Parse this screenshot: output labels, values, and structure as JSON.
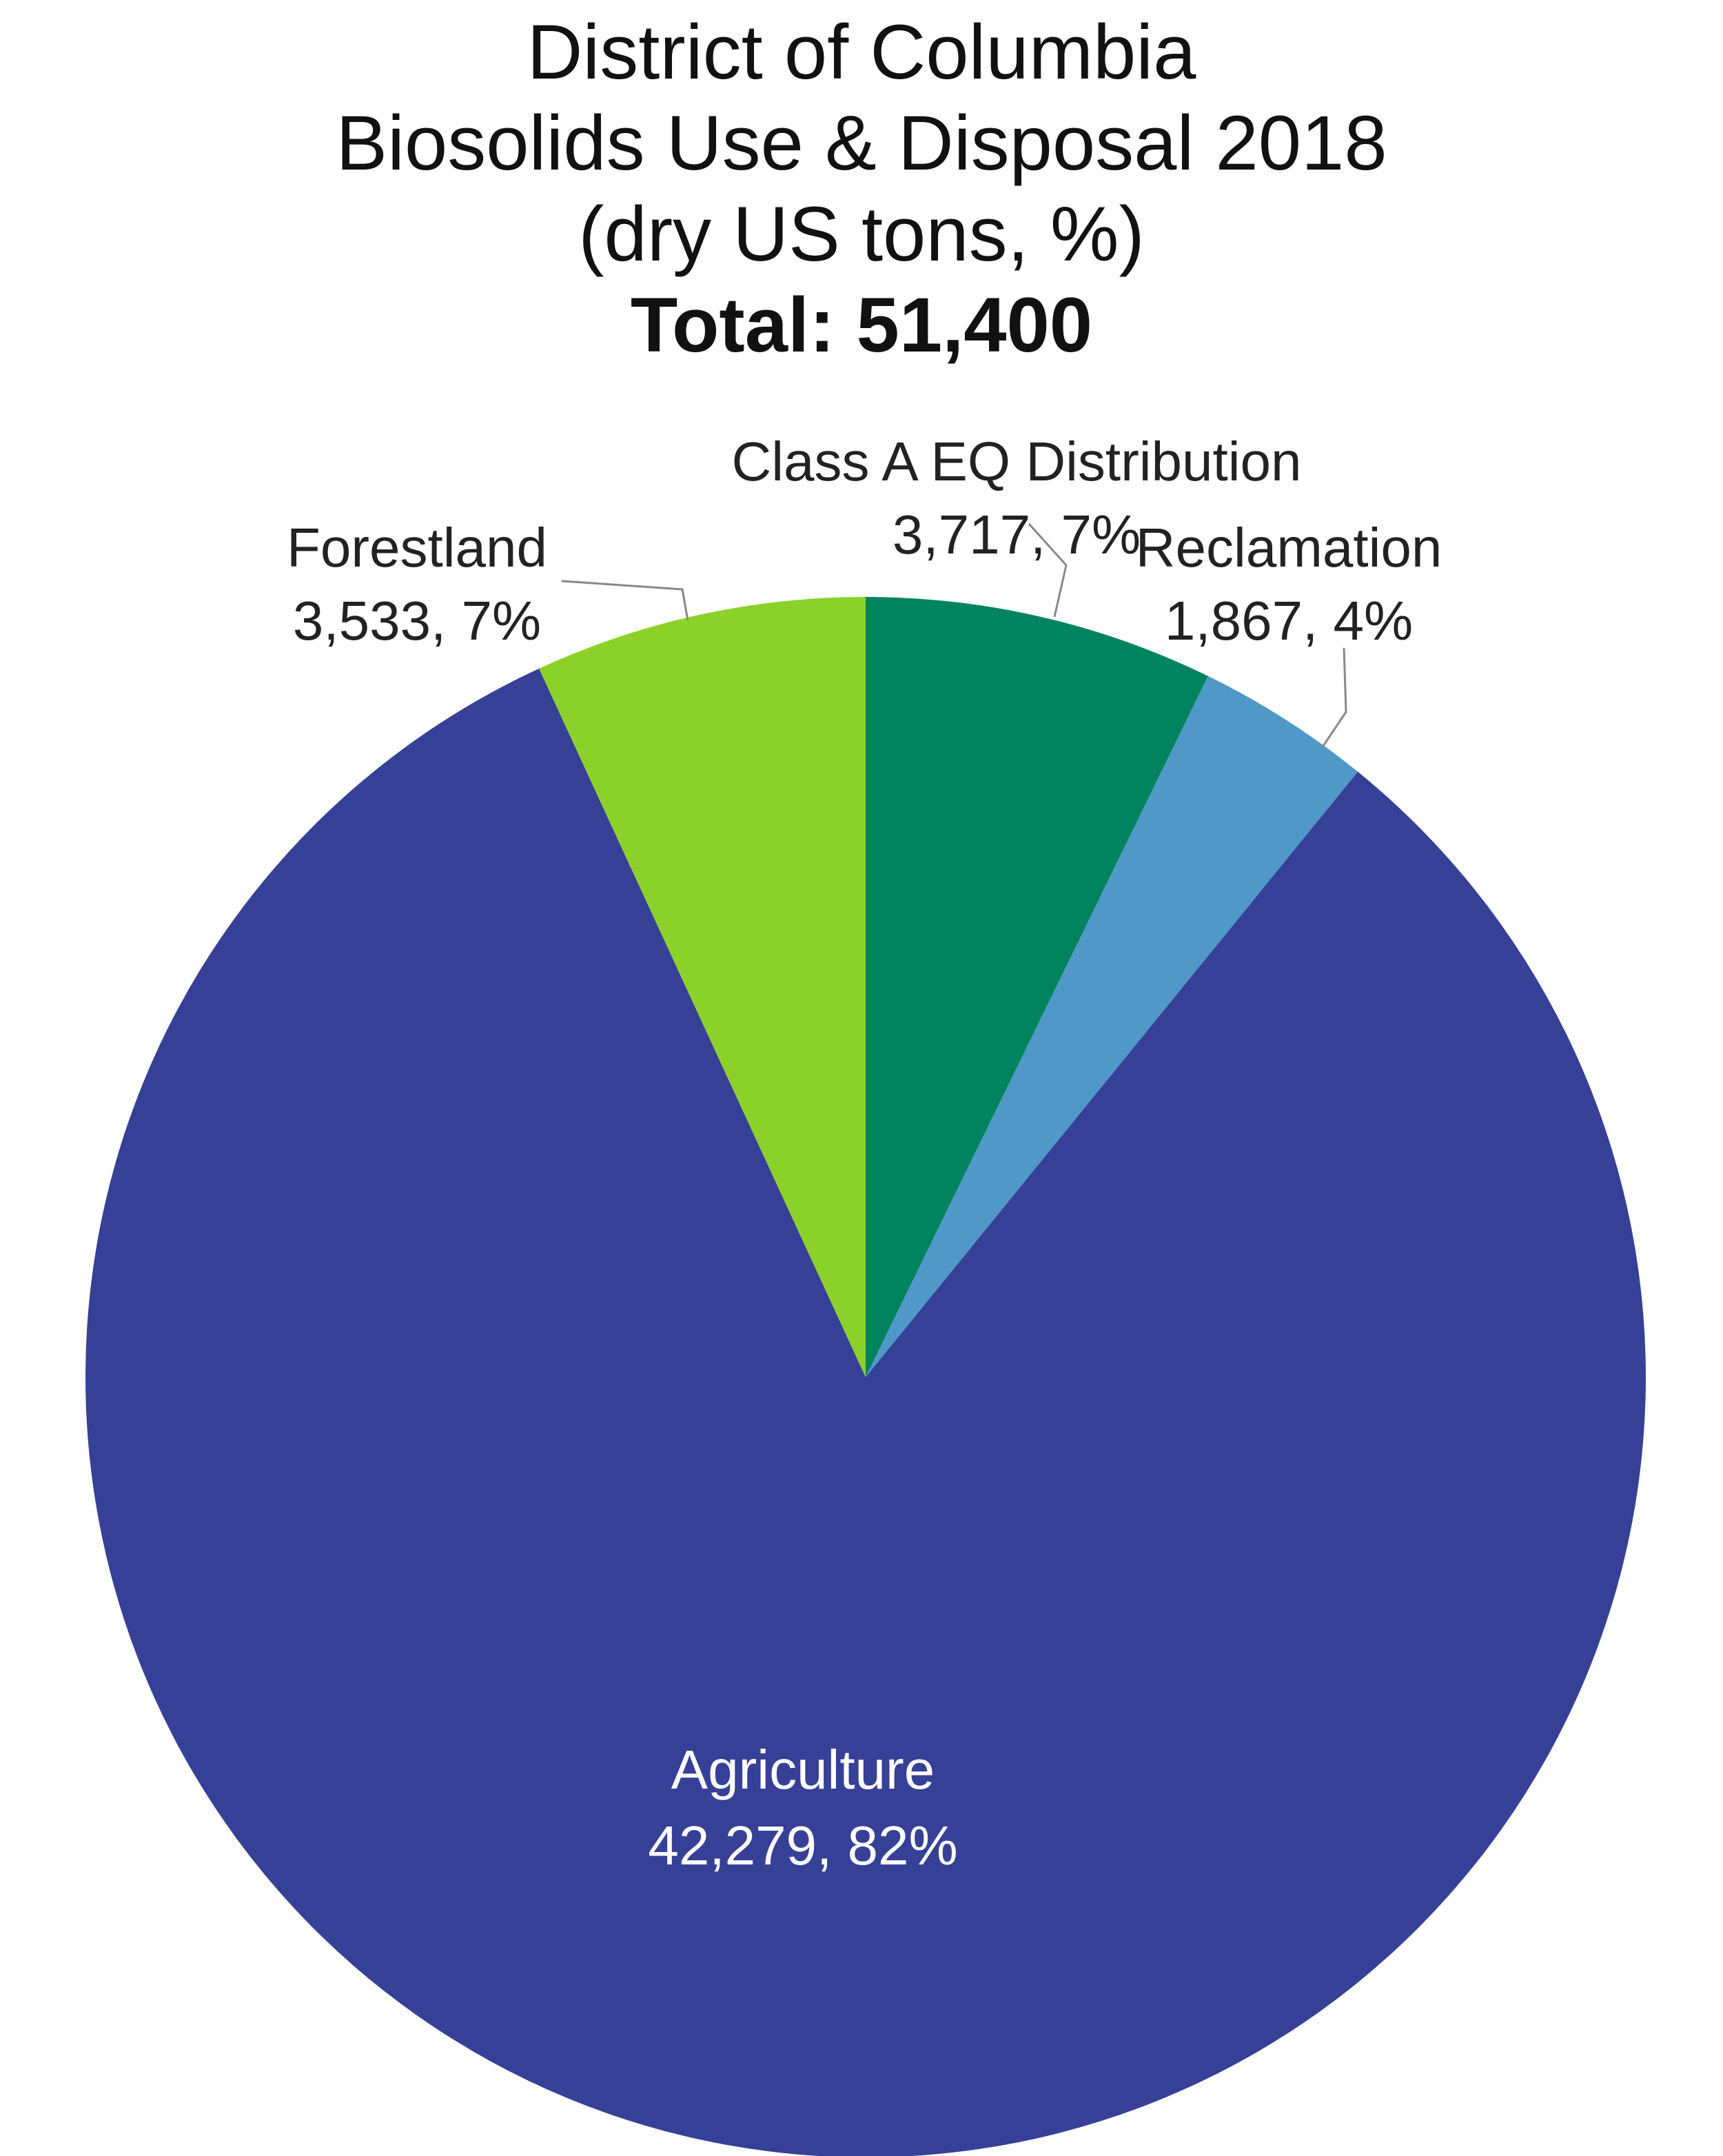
{
  "chart_data": {
    "type": "pie",
    "title_lines": [
      "District of Columbia",
      "Biosolids Use & Disposal 2018",
      "(dry US tons, %)"
    ],
    "total_label": "Total: 51,400",
    "start_angle_deg": 0,
    "direction": "clockwise",
    "slices": [
      {
        "name": "Class A EQ Distribution",
        "value": 3717,
        "value_label": "3,717, 7%",
        "color": "#00845f"
      },
      {
        "name": "Reclamation",
        "value": 1867,
        "value_label": "1,867, 4%",
        "color": "#4f98c8"
      },
      {
        "name": "Agriculture",
        "value": 42279,
        "value_label": "42,279, 82%",
        "color": "#364097"
      },
      {
        "name": "Forestland",
        "value": 3533,
        "value_label": "3,533, 7%",
        "color": "#8bd12a"
      }
    ]
  }
}
